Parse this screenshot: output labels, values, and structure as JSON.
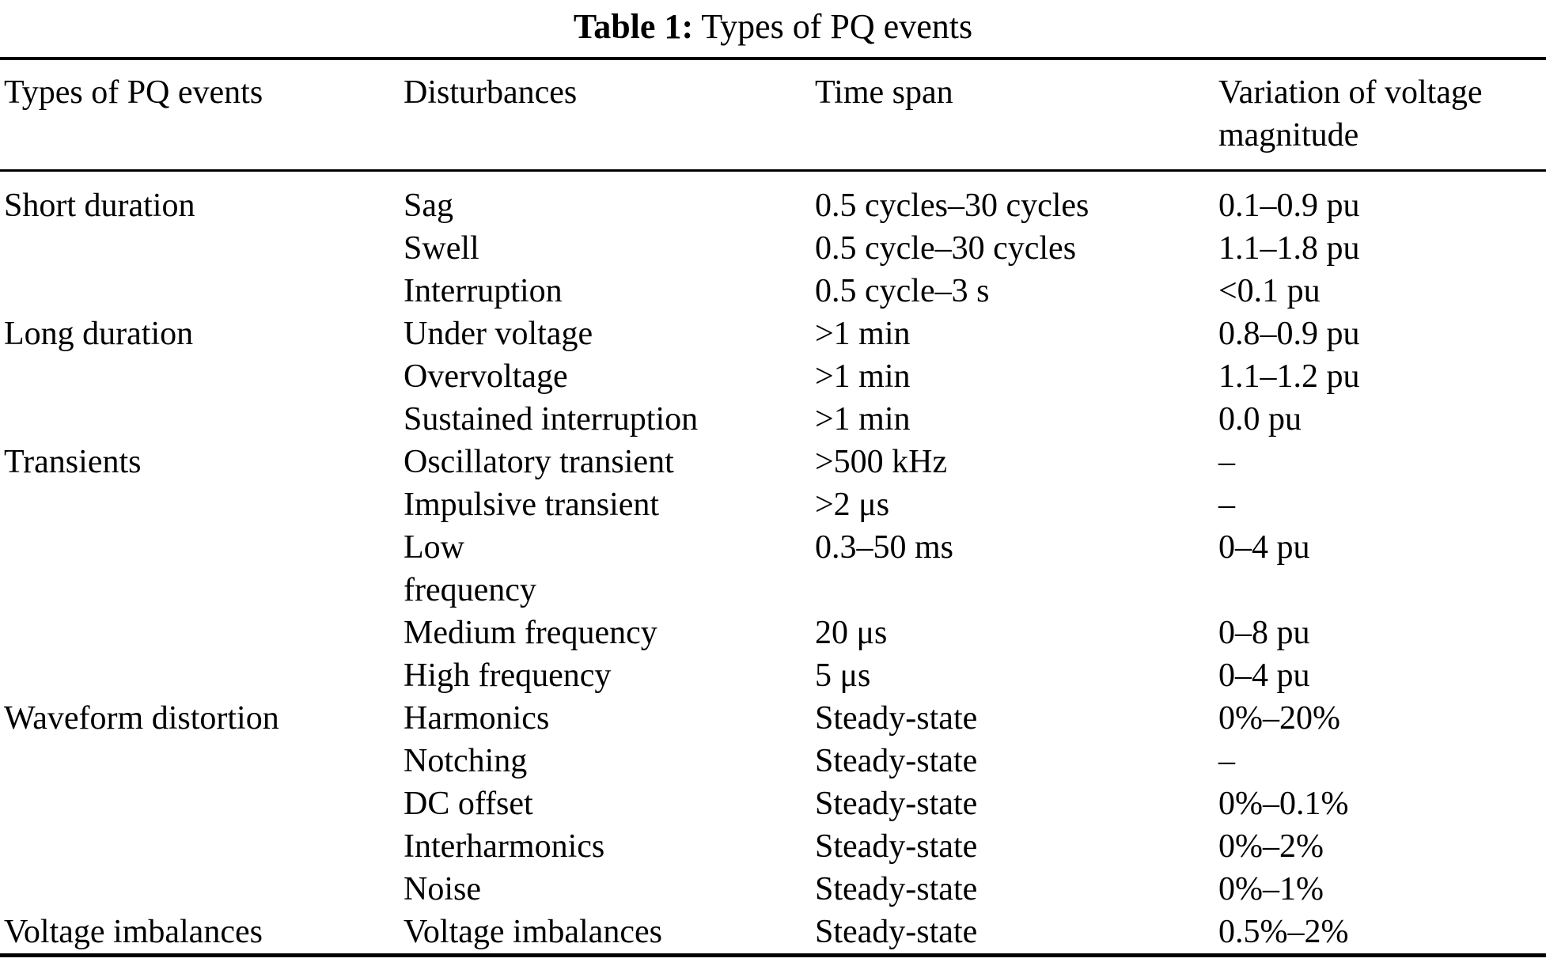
{
  "caption": {
    "label": "Table 1:",
    "text": "Types of PQ events"
  },
  "table": {
    "columns": [
      "Types of PQ events",
      "Disturbances",
      "Time span",
      "Variation of voltage magnitude"
    ],
    "rows": [
      {
        "type": "Short duration",
        "disturbance": "Sag",
        "time": "0.5 cycles–30 cycles",
        "variation": "0.1–0.9 pu"
      },
      {
        "type": "",
        "disturbance": "Swell",
        "time": "0.5 cycle–30 cycles",
        "variation": "1.1–1.8 pu"
      },
      {
        "type": "",
        "disturbance": "Interruption",
        "time": "0.5 cycle–3 s",
        "variation": "<0.1 pu"
      },
      {
        "type": "Long duration",
        "disturbance": "Under voltage",
        "time": ">1 min",
        "variation": "0.8–0.9 pu"
      },
      {
        "type": "",
        "disturbance": "Overvoltage",
        "time": ">1 min",
        "variation": "1.1–1.2 pu"
      },
      {
        "type": "",
        "disturbance": "Sustained interruption",
        "time": ">1 min",
        "variation": "0.0 pu"
      },
      {
        "type": "Transients",
        "disturbance": "Oscillatory transient",
        "time": ">500 kHz",
        "variation": "–"
      },
      {
        "type": "",
        "disturbance": "Impulsive transient",
        "time": ">2 μs",
        "variation": "–"
      },
      {
        "type": "",
        "disturbance": "Low\nfrequency",
        "time": "0.3–50 ms",
        "variation": "0–4 pu"
      },
      {
        "type": "",
        "disturbance": "Medium frequency",
        "time": "20 μs",
        "variation": "0–8 pu"
      },
      {
        "type": "",
        "disturbance": "High frequency",
        "time": "5 μs",
        "variation": "0–4 pu"
      },
      {
        "type": "Waveform distortion",
        "disturbance": "Harmonics",
        "time": "Steady-state",
        "variation": "0%–20%"
      },
      {
        "type": "",
        "disturbance": "Notching",
        "time": "Steady-state",
        "variation": "–"
      },
      {
        "type": "",
        "disturbance": "DC offset",
        "time": "Steady-state",
        "variation": "0%–0.1%"
      },
      {
        "type": "",
        "disturbance": "Interharmonics",
        "time": "Steady-state",
        "variation": "0%–2%"
      },
      {
        "type": "",
        "disturbance": "Noise",
        "time": "Steady-state",
        "variation": "0%–1%"
      },
      {
        "type": "Voltage imbalances",
        "disturbance": "Voltage imbalances",
        "time": "Steady-state",
        "variation": "0.5%–2%"
      }
    ]
  }
}
